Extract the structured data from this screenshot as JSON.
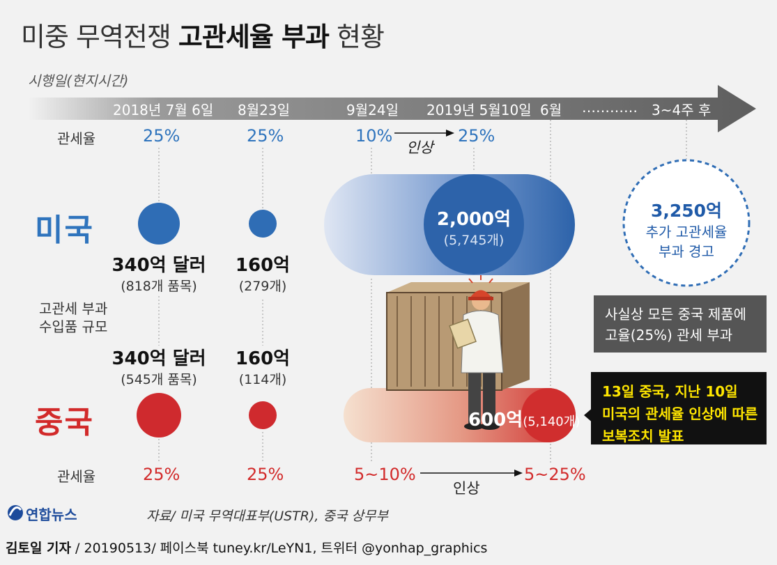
{
  "title": {
    "part1": "미중 무역전쟁 ",
    "part2": "고관세율 부과",
    "part3": " 현황"
  },
  "timeline": {
    "label": "시행일(현지시간)",
    "dates": [
      "2018년 7월 6일",
      "8월23일",
      "9월24일",
      "2019년 5월10일",
      "6월",
      "…………",
      "3~4주 후"
    ]
  },
  "tariff_label": "관세율",
  "us": {
    "name": "미국",
    "rates": [
      "25%",
      "25%",
      "10%",
      "25%"
    ],
    "raise_label": "인상",
    "amounts": [
      {
        "value": "340억 달러",
        "count": "(818개 품목)"
      },
      {
        "value": "160억",
        "count": "(279개)"
      },
      {
        "value": "2,000억",
        "count": "(5,745개)"
      }
    ],
    "warning": {
      "line1": "3,250억",
      "line2": "추가 고관세율",
      "line3": "부과 경고"
    },
    "note": {
      "line1": "사실상 모든 중국 제품에",
      "line2": "고율(25%) 관세 부과"
    }
  },
  "import_scale_label": {
    "line1": "고관세 부과",
    "line2": "수입품 규모"
  },
  "china": {
    "name": "중국",
    "rates": [
      "25%",
      "25%",
      "5~10%",
      "5~25%"
    ],
    "raise_label": "인상",
    "amounts": [
      {
        "value": "340억 달러",
        "count": "(545개 품목)"
      },
      {
        "value": "160억",
        "count": "(114개)"
      },
      {
        "value": "600억",
        "count": "(5,140개)"
      }
    ],
    "note": {
      "line1": "13일 중국, 지난 10일",
      "line2": "미국의 관세율 인상에 따른",
      "line3": "보복조치 발표"
    }
  },
  "logo": "연합뉴스",
  "source": "자료/ 미국 무역대표부(USTR), 중국 상무부",
  "footer": {
    "author": "김토일 기자",
    "rest": " / 20190513/ 페이스북 tuney.kr/LeYN1, 트위터 @yonhap_graphics"
  },
  "colors": {
    "us_blue": "#2f74bd",
    "china_red": "#d22a2a",
    "timeline_gray": "#666666",
    "note_yellow": "#ffe600"
  }
}
